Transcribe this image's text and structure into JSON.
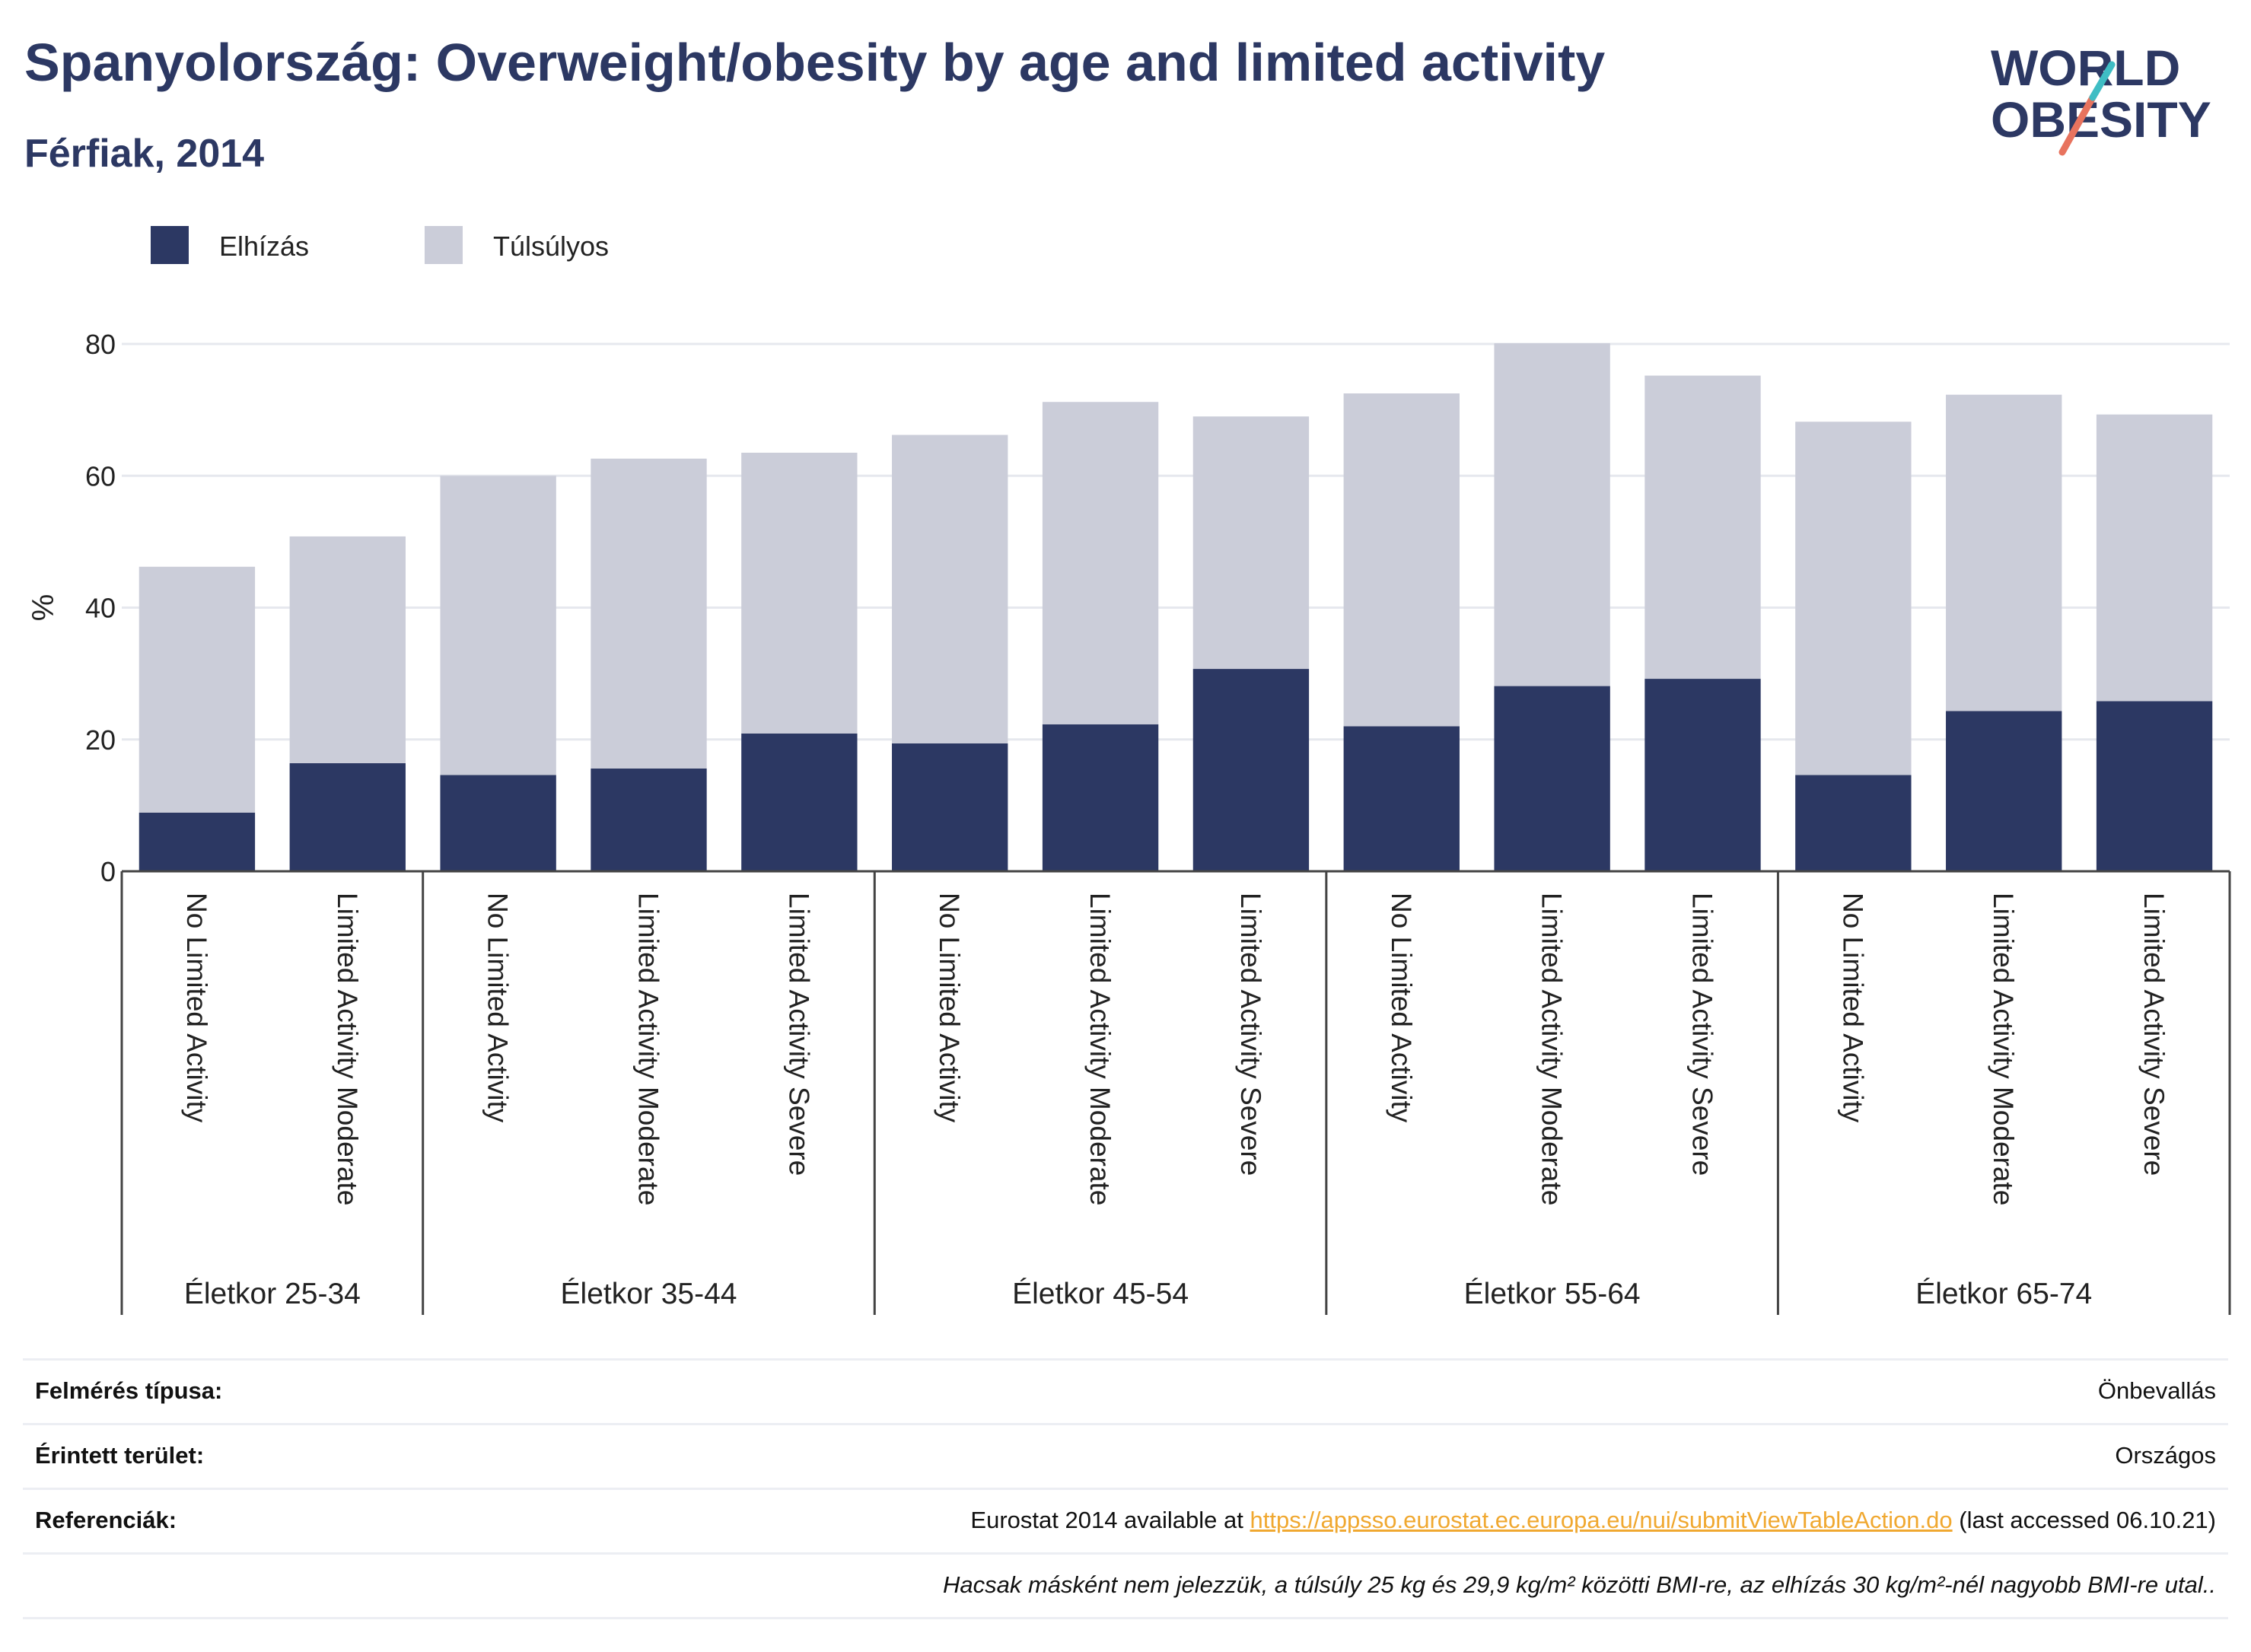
{
  "title": "Spanyolország: Overweight/obesity by age and limited activity",
  "subtitle": "Férfiak, 2014",
  "logo": {
    "line1": "WORLD",
    "line2": "OBESITY"
  },
  "colors": {
    "obesity": "#2c3863",
    "overweight": "#cbcdd9",
    "text": "#2c3863",
    "accent_teal": "#3fbdc4",
    "accent_red": "#e8735e",
    "link": "#f0a830"
  },
  "chart_data": {
    "type": "bar",
    "stacked": true,
    "ylabel": "%",
    "ylim": [
      0,
      80
    ],
    "yticks": [
      0,
      20,
      40,
      60,
      80
    ],
    "grid": true,
    "legend_position": "top-left",
    "groups": [
      {
        "label": "Életkor 25-34",
        "categories": [
          "No Limited Activity",
          "Limited Activity Moderate"
        ]
      },
      {
        "label": "Életkor 35-44",
        "categories": [
          "No Limited Activity",
          "Limited Activity Moderate",
          "Limited Activity Severe"
        ]
      },
      {
        "label": "Életkor 45-54",
        "categories": [
          "No Limited Activity",
          "Limited Activity Moderate",
          "Limited Activity Severe"
        ]
      },
      {
        "label": "Életkor 55-64",
        "categories": [
          "No Limited Activity",
          "Limited Activity Moderate",
          "Limited Activity Severe"
        ]
      },
      {
        "label": "Életkor 65-74",
        "categories": [
          "No Limited Activity",
          "Limited Activity Moderate",
          "Limited Activity Severe"
        ]
      }
    ],
    "series": [
      {
        "name": "Elhízás",
        "color": "#2c3863",
        "values": [
          8.9,
          16.4,
          14.6,
          15.6,
          20.9,
          19.4,
          22.3,
          30.7,
          22.0,
          28.1,
          29.2,
          14.6,
          24.3,
          25.8
        ]
      },
      {
        "name": "Túlsúlyos",
        "color": "#cbcdd9",
        "values": [
          37.3,
          34.4,
          45.4,
          47.0,
          42.6,
          46.8,
          48.9,
          38.3,
          50.5,
          52.0,
          46.0,
          53.6,
          48.0,
          43.5
        ]
      }
    ]
  },
  "footer": {
    "survey_label": "Felmérés típusa:",
    "survey_value": "Önbevallás",
    "area_label": "Érintett terület:",
    "area_value": "Országos",
    "ref_label": "Referenciák:",
    "ref_prefix": "Eurostat 2014 available at",
    "ref_link": "https://appsso.eurostat.ec.europa.eu/nui/submitViewTableAction.do",
    "ref_suffix": "(last accessed 06.10.21)",
    "note": "Hacsak másként nem jelezzük, a túlsúly 25 kg és 29,9 kg/m² közötti BMI-re, az elhízás 30 kg/m²-nél nagyobb BMI-re utal.."
  }
}
